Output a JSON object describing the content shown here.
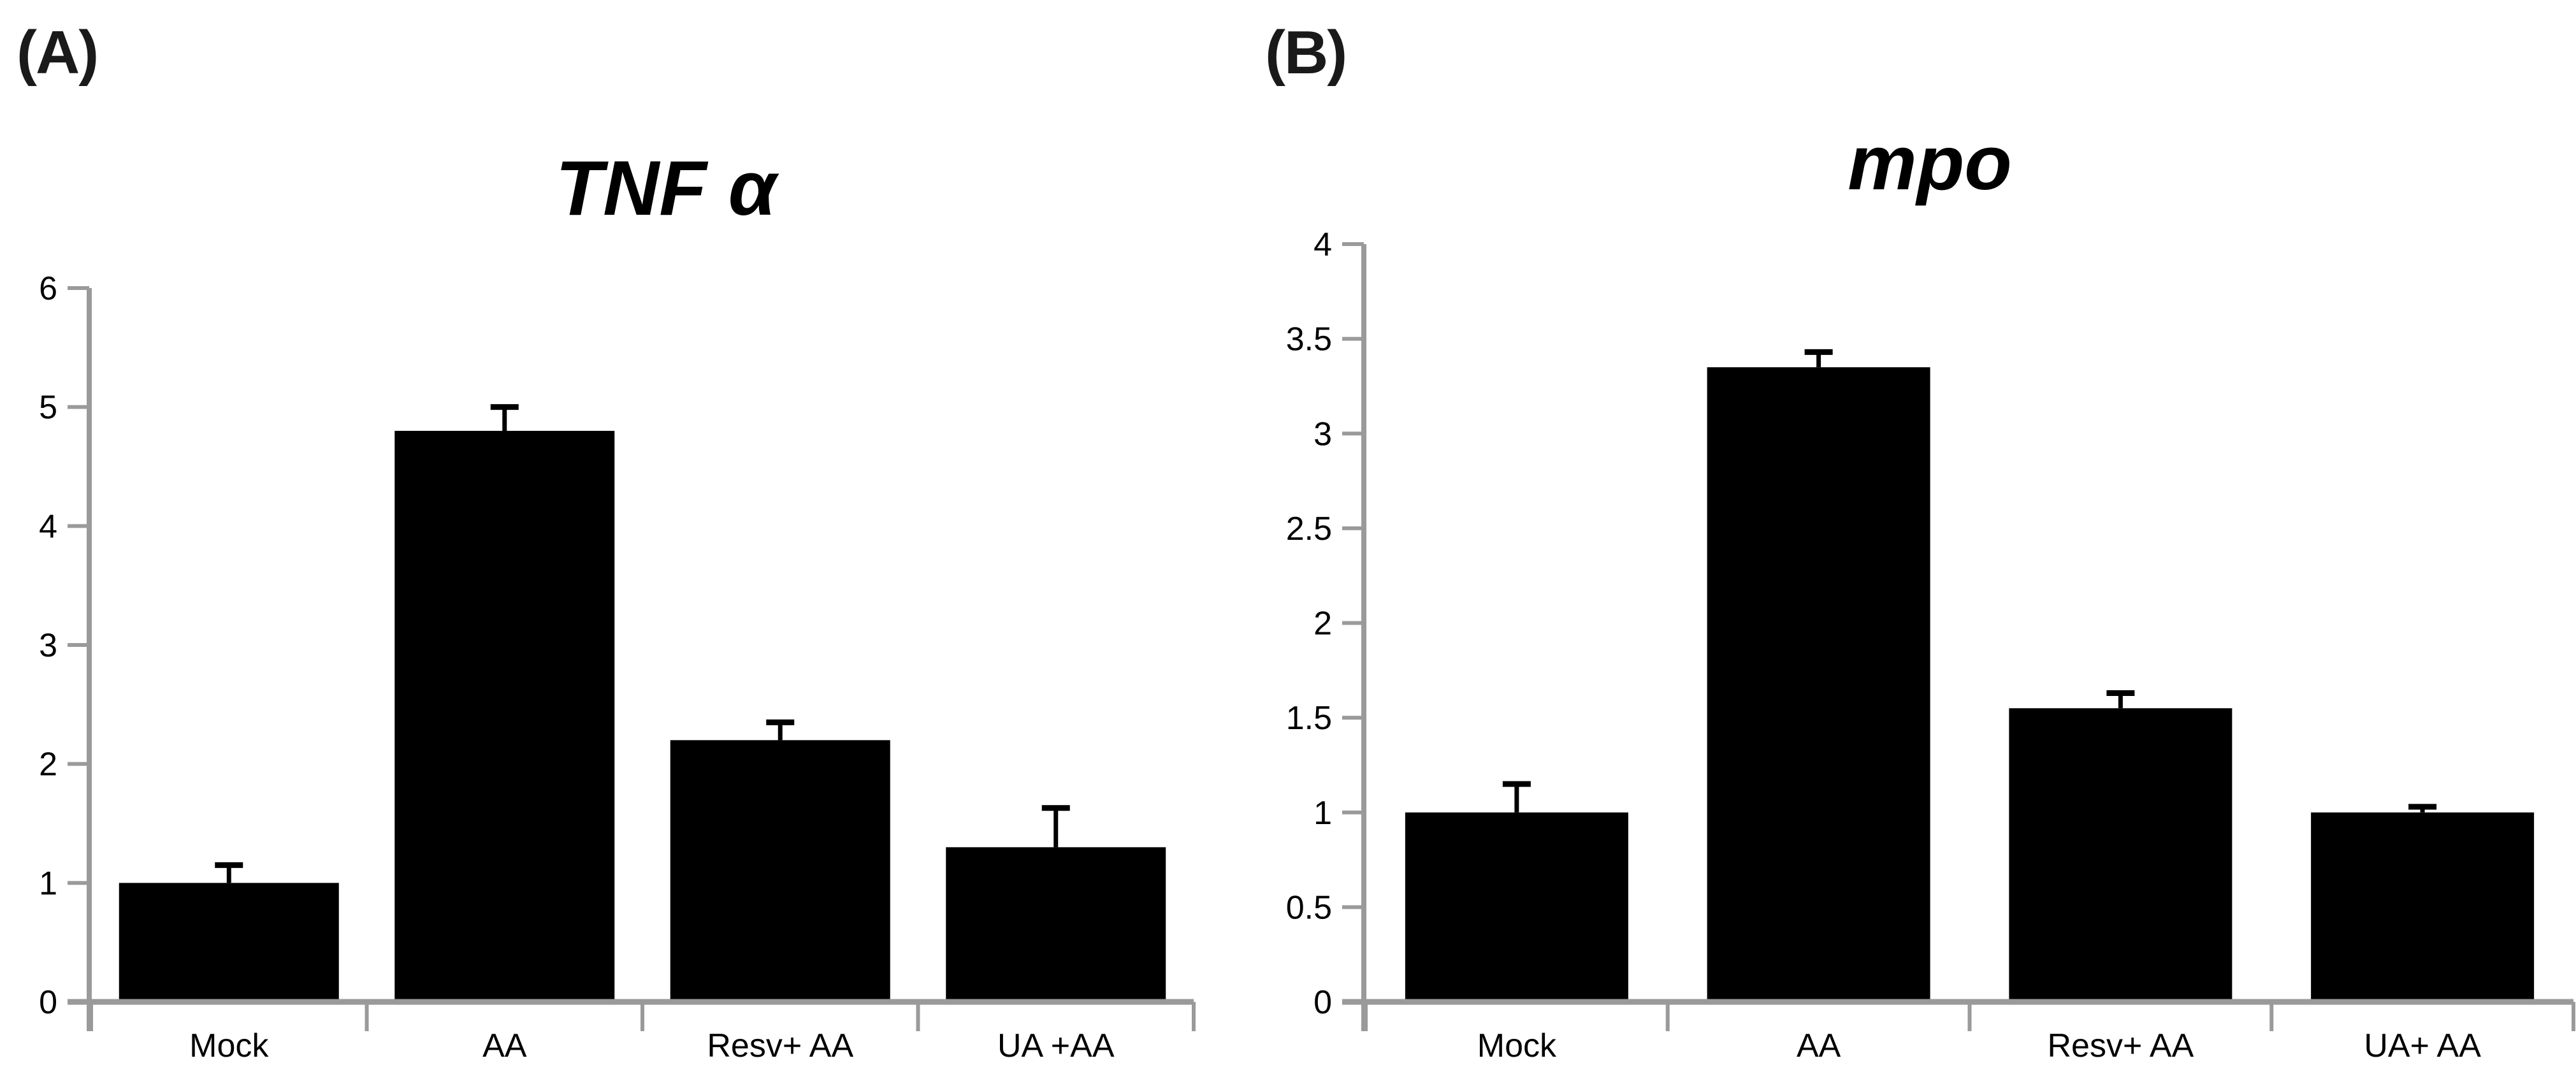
{
  "figure": {
    "background": "#ffffff",
    "bar_color": "#000000",
    "axis_color": "#9a9a9a",
    "text_color": "#000000"
  },
  "chart_data": [
    {
      "type": "bar",
      "panel_label": "(A)",
      "title": "TNF α",
      "categories": [
        "Mock",
        "AA",
        "Resv+ AA",
        "UA +AA"
      ],
      "values": [
        1.0,
        4.8,
        2.2,
        1.3
      ],
      "errors_plus": [
        0.15,
        0.2,
        0.15,
        0.33
      ],
      "ylim": [
        0,
        6
      ],
      "ytick_step": 1,
      "ytick_labels": [
        "0",
        "1",
        "2",
        "3",
        "4",
        "5",
        "6"
      ],
      "xlabel": "",
      "ylabel": "",
      "grid": false,
      "legend": "none"
    },
    {
      "type": "bar",
      "panel_label": "(B)",
      "title": "mpo",
      "categories": [
        "Mock",
        "AA",
        "Resv+ AA",
        "UA+ AA"
      ],
      "values": [
        1.0,
        3.35,
        1.55,
        1.0
      ],
      "errors_plus": [
        0.15,
        0.08,
        0.08,
        0.03
      ],
      "ylim": [
        0,
        4
      ],
      "ytick_step": 0.5,
      "ytick_labels": [
        "0",
        "0.5",
        "1",
        "1.5",
        "2",
        "2.5",
        "3",
        "3.5",
        "4"
      ],
      "xlabel": "",
      "ylabel": "",
      "grid": false,
      "legend": "none"
    }
  ]
}
